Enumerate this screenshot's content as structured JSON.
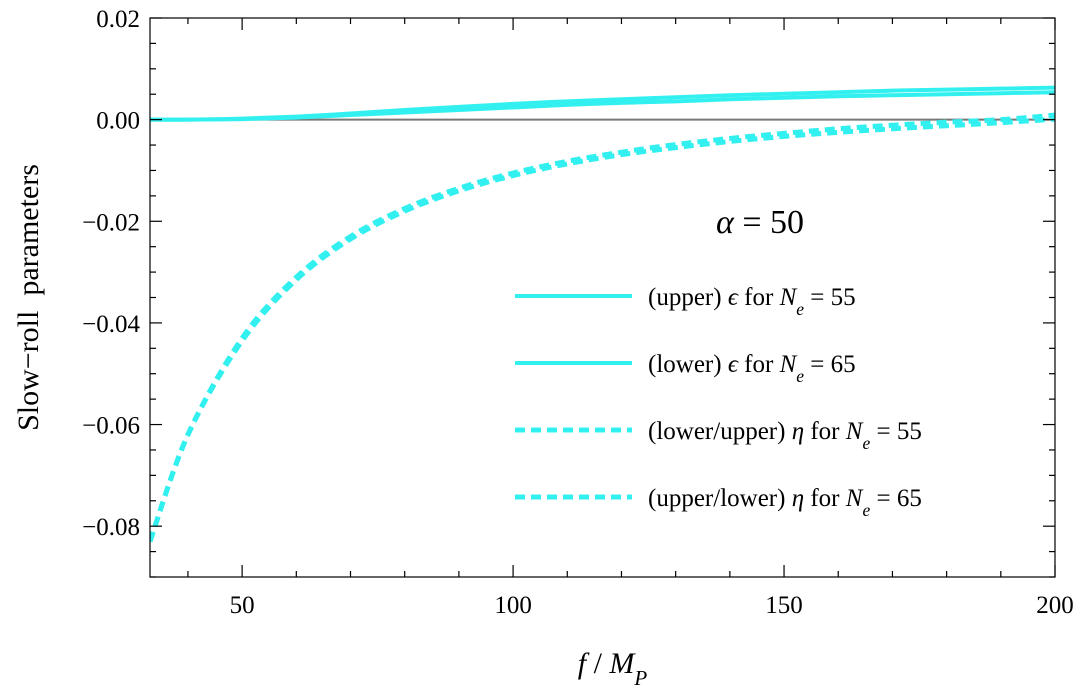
{
  "chart_data": {
    "type": "line",
    "xlabel": "f / M_P",
    "ylabel": "Slow−roll  parameters",
    "xlim": [
      33,
      200
    ],
    "ylim": [
      -0.09,
      0.02
    ],
    "x_ticks": [
      50,
      100,
      150,
      200
    ],
    "x_tick_labels": [
      "50",
      "100",
      "150",
      "200"
    ],
    "y_ticks": [
      0.02,
      0.0,
      -0.02,
      -0.04,
      -0.06,
      -0.08
    ],
    "y_tick_labels": [
      "0.02",
      "0.00",
      "−0.02",
      "−0.04",
      "−0.06",
      "−0.08"
    ],
    "annotation": "α = 50",
    "legend_position": "center-right",
    "colors": {
      "series": "#33f0f0",
      "zero_line": "#777777",
      "frame": "#000000"
    },
    "x": [
      33,
      40,
      50,
      60,
      70,
      80,
      90,
      100,
      110,
      120,
      130,
      140,
      150,
      160,
      170,
      180,
      190,
      200
    ],
    "series": [
      {
        "name": "(upper) ϵ for N_e = 55",
        "style": "solid",
        "values": [
          0.0,
          0.0,
          0.0002,
          0.0006,
          0.0012,
          0.0019,
          0.0025,
          0.0031,
          0.0036,
          0.004,
          0.0044,
          0.0048,
          0.0051,
          0.0054,
          0.0057,
          0.0059,
          0.0061,
          0.0063
        ]
      },
      {
        "name": "(lower) ϵ for N_e = 65",
        "style": "solid",
        "values": [
          0.0,
          0.0,
          0.0001,
          0.0004,
          0.0009,
          0.0014,
          0.0019,
          0.0024,
          0.0029,
          0.0033,
          0.0036,
          0.004,
          0.0043,
          0.0046,
          0.0048,
          0.005,
          0.0052,
          0.0054
        ]
      },
      {
        "name": "(lower/upper) η for N_e = 55",
        "style": "dashed",
        "values": [
          -0.083,
          -0.062,
          -0.043,
          -0.031,
          -0.023,
          -0.0175,
          -0.0135,
          -0.0105,
          -0.0082,
          -0.0064,
          -0.0049,
          -0.0037,
          -0.0027,
          -0.0018,
          -0.0011,
          -0.0005,
          0.0,
          0.0009
        ]
      },
      {
        "name": "(upper/lower) η for N_e = 65",
        "style": "dashed",
        "values": [
          -0.083,
          -0.062,
          -0.0435,
          -0.0315,
          -0.0235,
          -0.018,
          -0.014,
          -0.011,
          -0.0087,
          -0.0069,
          -0.0055,
          -0.0043,
          -0.0033,
          -0.0025,
          -0.0018,
          -0.0012,
          -0.0006,
          0.0001
        ]
      }
    ]
  }
}
